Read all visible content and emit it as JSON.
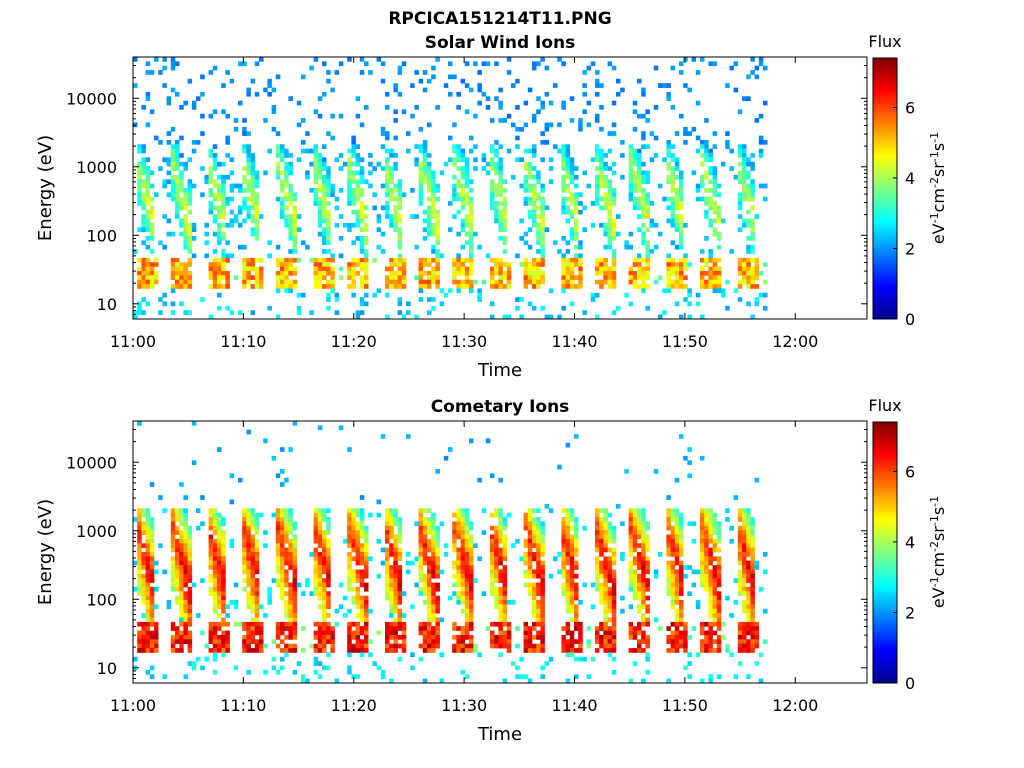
{
  "figure_title": "RPCICA151214T11.PNG",
  "chart_data": [
    {
      "type": "heatmap",
      "title": "Solar Wind Ions",
      "xlabel": "Time",
      "ylabel": "Energy (eV)",
      "x_ticks": [
        "11:00",
        "11:10",
        "11:20",
        "11:30",
        "11:40",
        "11:50",
        "12:00"
      ],
      "x_range_min": [
        0,
        66.5
      ],
      "x_data_end_min": 57.5,
      "y_ticks": [
        "10",
        "100",
        "1000",
        "10000"
      ],
      "y_scale": "log",
      "y_range": [
        6,
        40000
      ],
      "colorbar": {
        "title": "Flux",
        "label": "eV-1cm-2sr-1s-1",
        "ticks": [
          "0",
          "2",
          "4",
          "6"
        ],
        "range": [
          0,
          7.4
        ],
        "colormap": "jet"
      },
      "energy_sweeps": {
        "count": 17,
        "period_min": 3.2,
        "peak_flux_low_energy": 6.2,
        "background_flux": 2.0
      }
    },
    {
      "type": "heatmap",
      "title": "Cometary Ions",
      "xlabel": "Time",
      "ylabel": "Energy (eV)",
      "x_ticks": [
        "11:00",
        "11:10",
        "11:20",
        "11:30",
        "11:40",
        "11:50",
        "12:00"
      ],
      "x_range_min": [
        0,
        66.5
      ],
      "x_data_end_min": 57.5,
      "y_ticks": [
        "10",
        "100",
        "1000",
        "10000"
      ],
      "y_scale": "log",
      "y_range": [
        6,
        40000
      ],
      "colorbar": {
        "title": "Flux",
        "label": "eV-1cm-2sr-1s-1",
        "ticks": [
          "0",
          "2",
          "4",
          "6"
        ],
        "range": [
          0,
          7.4
        ],
        "colormap": "jet"
      },
      "energy_sweeps": {
        "count": 17,
        "period_min": 3.2,
        "peak_flux_low_energy": 7.0,
        "background_flux": 2.2
      }
    }
  ]
}
